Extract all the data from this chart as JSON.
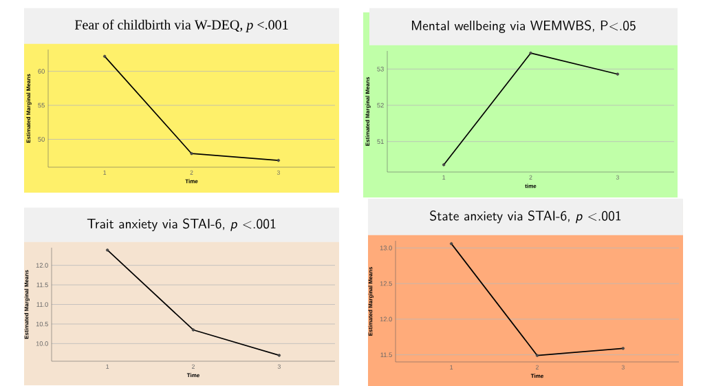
{
  "chart_data": [
    {
      "type": "line",
      "title": "Fear of childbirth via W-DEQ,  *p* <.001",
      "xlabel": "Time",
      "ylabel": "Estimated Marginal Means",
      "categories": [
        "1",
        "2",
        "3"
      ],
      "series": [
        {
          "color": "#000000",
          "values": [
            62.2,
            47.9,
            46.9
          ]
        }
      ],
      "ylim": [
        45.9,
        63.2
      ],
      "yticks": [
        50,
        55,
        60
      ],
      "grid": "y",
      "marker": "circle"
    },
    {
      "type": "line",
      "title": "Mental wellbeing via WEMWBS, P<.05",
      "xlabel": "time",
      "ylabel": "Estimated Marginal Means",
      "categories": [
        "1",
        "2",
        "3"
      ],
      "series": [
        {
          "color": "#000000",
          "values": [
            50.36,
            53.44,
            52.86
          ]
        }
      ],
      "ylim": [
        50.16,
        53.5
      ],
      "yticks": [
        51,
        52,
        53
      ],
      "grid": "y",
      "marker": "circle"
    },
    {
      "type": "line",
      "title": "Trait anxiety via STAI-6, *p* <.001",
      "xlabel": "Time",
      "ylabel": "Estimated Marginal Means",
      "categories": [
        "1",
        "2",
        "3"
      ],
      "series": [
        {
          "color": "#000000",
          "values": [
            12.39,
            10.35,
            9.7
          ]
        }
      ],
      "ylim": [
        9.55,
        12.45
      ],
      "yticks": [
        {
          "value": 10.0,
          "label": "10.0"
        },
        {
          "value": 10.5,
          "label": "10.5"
        },
        {
          "value": 11.0,
          "label": "11.0"
        },
        {
          "value": 11.5,
          "label": "11.5"
        },
        {
          "value": 12.0,
          "label": "12.0"
        }
      ],
      "grid": "y",
      "marker": "circle"
    },
    {
      "type": "line",
      "title": "State anxiety via STAI-6, *p* <.001",
      "xlabel": "Time",
      "ylabel": "Estimated Marginal Means",
      "categories": [
        "1",
        "2",
        "3"
      ],
      "series": [
        {
          "color": "#000000",
          "values": [
            13.06,
            11.49,
            11.59
          ]
        }
      ],
      "ylim": [
        11.4,
        13.1
      ],
      "yticks": [
        11.5,
        {
          "value": 12.0,
          "label": "12.0"
        },
        12.5,
        {
          "value": 13.0,
          "label": "13.0"
        }
      ],
      "grid": "y",
      "marker": "circle"
    }
  ]
}
